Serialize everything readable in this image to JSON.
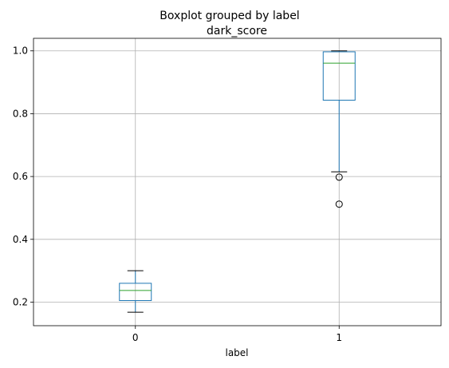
{
  "chart_data": {
    "type": "boxplot",
    "suptitle": "Boxplot grouped by label",
    "title": "dark_score",
    "xlabel": "label",
    "ylabel": "",
    "categories": [
      "0",
      "1"
    ],
    "ylim": [
      0.125,
      1.04
    ],
    "yticks": [
      0.2,
      0.4,
      0.6,
      0.8,
      1.0
    ],
    "ytick_labels": [
      "0.2",
      "0.4",
      "0.6",
      "0.8",
      "1.0"
    ],
    "grid": true,
    "boxes": [
      {
        "category": "0",
        "whisker_low": 0.168,
        "q1": 0.205,
        "median": 0.237,
        "q3": 0.26,
        "whisker_high": 0.3,
        "outliers": []
      },
      {
        "category": "1",
        "whisker_low": 0.615,
        "q1": 0.843,
        "median": 0.961,
        "q3": 0.997,
        "whisker_high": 1.0,
        "outliers": [
          0.598,
          0.512
        ]
      }
    ],
    "colors": {
      "box": "#1f77b4",
      "median": "#2ca02c",
      "whisker": "#000000",
      "grid": "#b0b0b0",
      "outlier_edge": "#000000"
    }
  }
}
